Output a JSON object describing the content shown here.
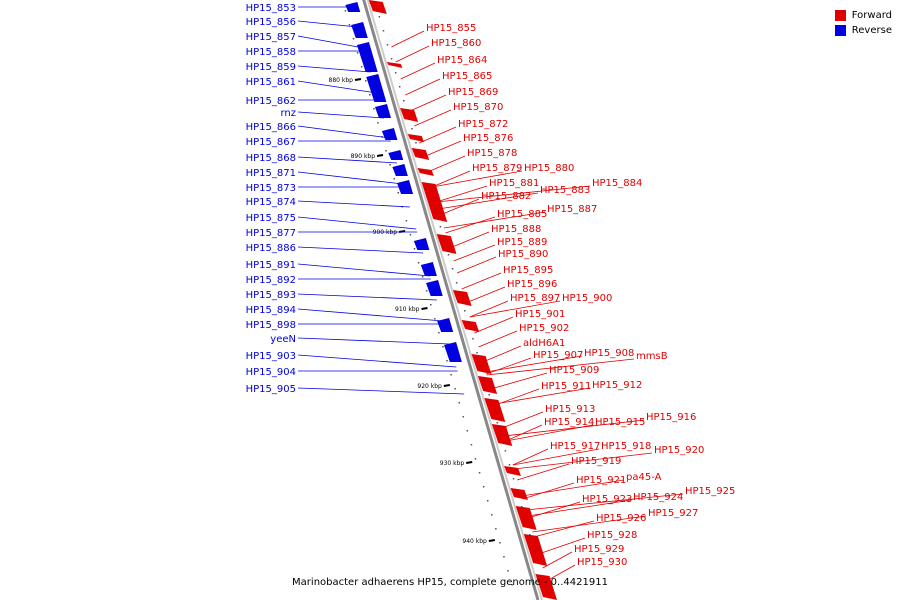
{
  "colors": {
    "forward": "#e00000",
    "reverse": "#0000e0",
    "backbone": "#888888"
  },
  "legend": {
    "forward_label": "Forward",
    "reverse_label": "Reverse"
  },
  "caption": "Marinobacter adhaerens HP15, complete genome - 0..4421911",
  "ticks": [
    {
      "pos": 880,
      "label": "880 kbp"
    },
    {
      "pos": 890,
      "label": "890 kbp"
    },
    {
      "pos": 900,
      "label": "900 kbp"
    },
    {
      "pos": 910,
      "label": "910 kbp"
    },
    {
      "pos": 920,
      "label": "920 kbp"
    },
    {
      "pos": 930,
      "label": "930 kbp"
    },
    {
      "pos": 940,
      "label": "940 kbp"
    }
  ],
  "reverse_genes": [
    "HP15_853",
    "HP15_856",
    "HP15_857",
    "HP15_858",
    "HP15_859",
    "HP15_861",
    "HP15_862",
    "rnz",
    "HP15_866",
    "HP15_867",
    "HP15_868",
    "HP15_871",
    "HP15_873",
    "HP15_874",
    "HP15_875",
    "HP15_877",
    "HP15_886",
    "HP15_891",
    "HP15_892",
    "HP15_893",
    "HP15_894",
    "HP15_898",
    "yeeN",
    "HP15_903",
    "HP15_904",
    "HP15_905"
  ],
  "forward_genes": [
    "HP15_855",
    "HP15_860",
    "HP15_864",
    "HP15_865",
    "HP15_869",
    "HP15_870",
    "HP15_872",
    "HP15_876",
    "HP15_878",
    "HP15_879",
    "HP15_880",
    "HP15_881",
    "HP15_884",
    "HP15_882",
    "HP15_883",
    "HP15_887",
    "HP15_885",
    "HP15_888",
    "HP15_889",
    "HP15_890",
    "HP15_895",
    "HP15_896",
    "HP15_897",
    "HP15_900",
    "HP15_901",
    "HP15_902",
    "aldH6A1",
    "HP15_907",
    "HP15_908",
    "mmsB",
    "HP15_909",
    "HP15_911",
    "HP15_912",
    "HP15_913",
    "HP15_914",
    "HP15_915",
    "HP15_916",
    "HP15_917",
    "HP15_918",
    "HP15_920",
    "HP15_919",
    "HP15_921",
    "pa45-A",
    "HP15_925",
    "HP15_923",
    "HP15_924",
    "HP15_926",
    "HP15_927",
    "HP15_928",
    "HP15_929",
    "HP15_930"
  ]
}
